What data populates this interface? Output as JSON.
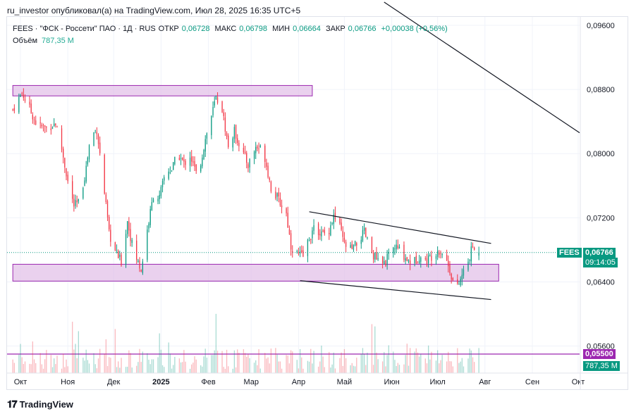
{
  "header": {
    "text": "ru_investor опубликовал(а) на TradingView.com, Июл 28, 2025 16:35 UTC+5"
  },
  "legend": {
    "symbol": "FEES · \"ФСК - Россети\" ПАО · 1Д · RUS",
    "open_label": "ОТКР",
    "open": "0,06728",
    "high_label": "МАКС",
    "high": "0,06798",
    "low_label": "МИН",
    "low": "0,06664",
    "close_label": "ЗАКР",
    "close": "0,06766",
    "change": "+0,00038 (+0,56%)",
    "volume_label": "Объём",
    "volume": "787,35 М"
  },
  "price_badge": {
    "symbol": "FEES",
    "price": "0,06766",
    "countdown": "09:14:05"
  },
  "level_badge": {
    "price": "0,05500"
  },
  "volume_badge": {
    "value": "787,35 М"
  },
  "footer": {
    "brand": "TradingView"
  },
  "colors": {
    "up": "#089981",
    "down": "#f23645",
    "zone": "#9c27b0",
    "zone_fill": "#e1bee7",
    "trend": "#131722"
  },
  "chart_data": {
    "type": "candlestick",
    "y_ticks": [
      "0,09600",
      "0,08800",
      "0,08000",
      "0,07200",
      "0,06400",
      "0,05600"
    ],
    "y_tick_values": [
      0.096,
      0.088,
      0.08,
      0.072,
      0.064,
      0.056
    ],
    "ylim": [
      0.0512,
      0.0985
    ],
    "x_ticks": [
      "Окт",
      "Ноя",
      "Дек",
      "2025",
      "Фев",
      "Мар",
      "Апр",
      "Май",
      "Июн",
      "Июл",
      "Авг",
      "Сен",
      "Окт"
    ],
    "x_tick_days": [
      1,
      32,
      62,
      93,
      124,
      152,
      183,
      213,
      244,
      274,
      305,
      336,
      366
    ],
    "last_day": 301,
    "close_price": 0.06766,
    "horizontal_level": 0.055,
    "zones": [
      {
        "from_day": -4,
        "to_day": 192,
        "low": 0.0872,
        "high": 0.0885
      },
      {
        "from_day": -4,
        "to_day": 314,
        "low": 0.0641,
        "high": 0.0662
      }
    ],
    "trendlines": [
      {
        "d1": 239,
        "p1": 0.0989,
        "d2": 405,
        "p2": 0.0826
      },
      {
        "d1": 190,
        "p1": 0.07275,
        "d2": 309,
        "p2": 0.0688
      },
      {
        "d1": 184,
        "p1": 0.06415,
        "d2": 309,
        "p2": 0.0618
      }
    ],
    "anchors": [
      [
        -4,
        0.0855
      ],
      [
        2,
        0.0876
      ],
      [
        7,
        0.0856
      ],
      [
        12,
        0.0835
      ],
      [
        18,
        0.0832
      ],
      [
        24,
        0.0838
      ],
      [
        28,
        0.0806
      ],
      [
        33,
        0.0755
      ],
      [
        36,
        0.0735
      ],
      [
        40,
        0.074
      ],
      [
        44,
        0.0783
      ],
      [
        47,
        0.0823
      ],
      [
        51,
        0.083
      ],
      [
        55,
        0.0768
      ],
      [
        59,
        0.07
      ],
      [
        63,
        0.0678
      ],
      [
        67,
        0.0665
      ],
      [
        71,
        0.0716
      ],
      [
        75,
        0.0678
      ],
      [
        80,
        0.0655
      ],
      [
        84,
        0.0705
      ],
      [
        88,
        0.0748
      ],
      [
        92,
        0.0745
      ],
      [
        96,
        0.0778
      ],
      [
        100,
        0.078
      ],
      [
        104,
        0.08
      ],
      [
        108,
        0.0787
      ],
      [
        112,
        0.0798
      ],
      [
        116,
        0.0775
      ],
      [
        118,
        0.078
      ],
      [
        122,
        0.0818
      ],
      [
        126,
        0.0847
      ],
      [
        129,
        0.087
      ],
      [
        133,
        0.0855
      ],
      [
        137,
        0.0808
      ],
      [
        141,
        0.0828
      ],
      [
        145,
        0.0808
      ],
      [
        150,
        0.0786
      ],
      [
        155,
        0.0808
      ],
      [
        160,
        0.0805
      ],
      [
        165,
        0.0757
      ],
      [
        170,
        0.0742
      ],
      [
        175,
        0.0725
      ],
      [
        178,
        0.0685
      ],
      [
        182,
        0.0675
      ],
      [
        186,
        0.0672
      ],
      [
        190,
        0.0695
      ],
      [
        194,
        0.0708
      ],
      [
        198,
        0.07
      ],
      [
        202,
        0.07
      ],
      [
        206,
        0.0722
      ],
      [
        210,
        0.0708
      ],
      [
        213,
        0.0686
      ],
      [
        218,
        0.068
      ],
      [
        222,
        0.069
      ],
      [
        226,
        0.0702
      ],
      [
        230,
        0.068
      ],
      [
        234,
        0.0668
      ],
      [
        238,
        0.066
      ],
      [
        242,
        0.0672
      ],
      [
        246,
        0.0684
      ],
      [
        250,
        0.0678
      ],
      [
        254,
        0.0668
      ],
      [
        258,
        0.0664
      ],
      [
        262,
        0.0672
      ],
      [
        266,
        0.0666
      ],
      [
        270,
        0.0672
      ],
      [
        274,
        0.068
      ],
      [
        278,
        0.0676
      ],
      [
        282,
        0.0655
      ],
      [
        286,
        0.0628
      ],
      [
        290,
        0.0648
      ],
      [
        294,
        0.0665
      ],
      [
        297,
        0.0685
      ],
      [
        299,
        0.0672
      ],
      [
        301,
        0.0677
      ]
    ]
  }
}
